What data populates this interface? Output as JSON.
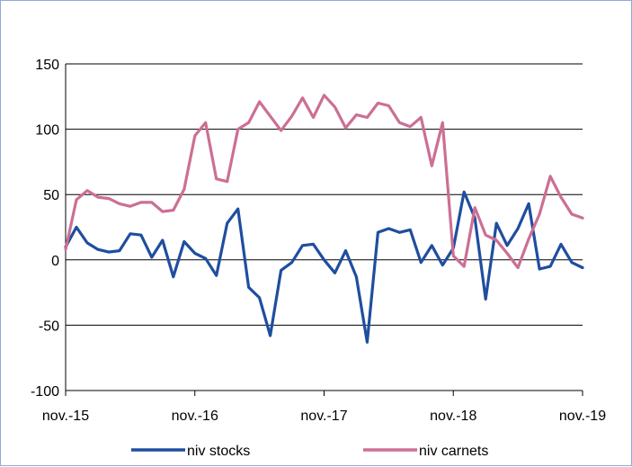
{
  "chart_data": {
    "type": "line",
    "title": "",
    "xlabel": "",
    "ylabel": "",
    "ylim": [
      -100,
      150
    ],
    "yticks": [
      -100,
      -50,
      0,
      50,
      100,
      150
    ],
    "xticks": [
      {
        "label": "nov.-15",
        "index": 0
      },
      {
        "label": "nov.-16",
        "index": 12
      },
      {
        "label": "nov.-17",
        "index": 24
      },
      {
        "label": "nov.-18",
        "index": 36
      },
      {
        "label": "nov.-19",
        "index": 48
      }
    ],
    "grid": "horizontal",
    "legend": "bottom",
    "series": [
      {
        "name": "niv stocks",
        "color": "#1f4e9f",
        "values": [
          10,
          25,
          13,
          8,
          6,
          7,
          20,
          19,
          2,
          15,
          -13,
          14,
          5,
          1,
          -12,
          28,
          39,
          -21,
          -29,
          -58,
          -8,
          -2,
          11,
          12,
          0,
          -10,
          7,
          -13,
          -63,
          21,
          24,
          21,
          23,
          -2,
          11,
          -4,
          9,
          52,
          32,
          -30,
          28,
          11,
          24,
          43,
          -7,
          -5,
          12,
          -2,
          -6
        ]
      },
      {
        "name": "niv carnets",
        "color": "#cc6f94",
        "values": [
          8,
          46,
          53,
          48,
          47,
          43,
          41,
          44,
          44,
          37,
          38,
          54,
          95,
          105,
          62,
          60,
          100,
          105,
          121,
          110,
          99,
          110,
          124,
          109,
          126,
          117,
          101,
          111,
          109,
          120,
          118,
          105,
          102,
          109,
          72,
          105,
          3,
          -5,
          40,
          19,
          15,
          5,
          -6,
          16,
          35,
          64,
          48,
          35,
          32
        ]
      }
    ]
  }
}
